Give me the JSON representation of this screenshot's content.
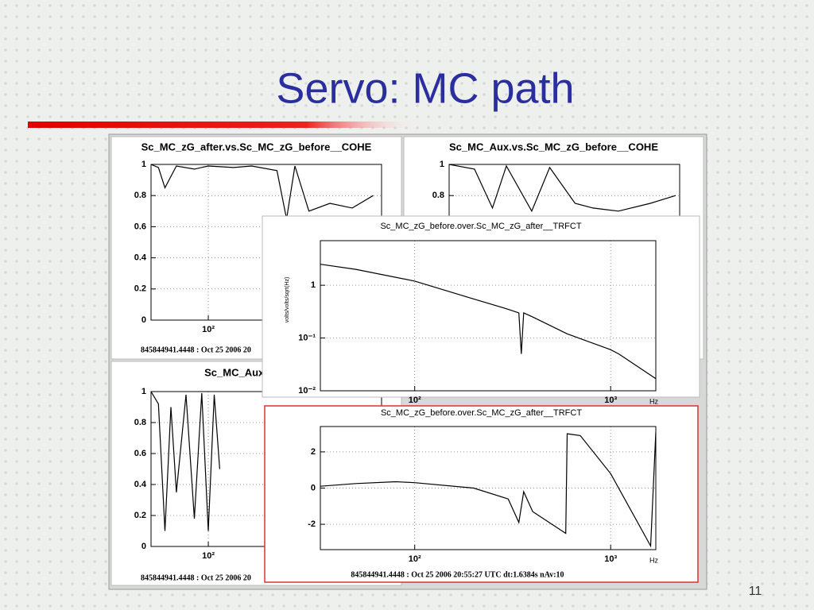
{
  "slide": {
    "title": "Servo: MC path",
    "page_number": "11"
  },
  "chart_data": [
    {
      "type": "line",
      "title": "Sc_MC_zG_after.vs.Sc_MC_zG_before__COHE",
      "note": "845844941.4448 : Oct 25 2006 20",
      "xlog": true,
      "xlim": [
        40,
        1600
      ],
      "xticks": [
        {
          "value": 100,
          "label": "10²"
        }
      ],
      "ylim": [
        0,
        1
      ],
      "yticks": [
        0,
        0.2,
        0.4,
        0.6,
        0.8,
        1
      ],
      "grid": true,
      "color": "#000000",
      "x": [
        40,
        45,
        50,
        60,
        80,
        100,
        150,
        200,
        300,
        350,
        400,
        500,
        700,
        1000,
        1400
      ],
      "values": [
        1,
        0.98,
        0.85,
        0.99,
        0.97,
        0.99,
        0.98,
        0.99,
        0.96,
        0.65,
        0.99,
        0.7,
        0.75,
        0.72,
        0.8
      ]
    },
    {
      "type": "line",
      "title": "Sc_MC_Aux.vs.Sc_MC_zG_before__COHE",
      "xlog": true,
      "xlim": [
        40,
        1600
      ],
      "xticks": [],
      "ylim": [
        0,
        1
      ],
      "yticks": [
        0.8,
        1
      ],
      "grid": true,
      "color": "#000000",
      "x": [
        40,
        60,
        80,
        100,
        150,
        200,
        300,
        400,
        600,
        1000,
        1500
      ],
      "values": [
        1,
        0.97,
        0.72,
        0.99,
        0.7,
        0.98,
        0.75,
        0.72,
        0.7,
        0.75,
        0.8
      ]
    },
    {
      "type": "line",
      "title": "Sc_MC_Aux.vs.Sc_M",
      "note": "845844941.4448 : Oct 25 2006 20",
      "xlog": true,
      "xlim": [
        40,
        1600
      ],
      "xticks": [
        {
          "value": 100,
          "label": "10²"
        }
      ],
      "ylim": [
        0,
        1
      ],
      "yticks": [
        0,
        0.2,
        0.4,
        0.6,
        0.8,
        1
      ],
      "grid": true,
      "color": "#000000",
      "x": [
        40,
        45,
        50,
        55,
        60,
        70,
        80,
        90,
        100,
        110,
        120
      ],
      "values": [
        1,
        0.92,
        0.1,
        0.9,
        0.35,
        0.98,
        0.18,
        0.99,
        0.1,
        0.98,
        0.5
      ]
    },
    {
      "type": "line",
      "title": "Sc_MC_zG_before.over.Sc_MC_zG_after__TRFCT",
      "y_label": "volts/volts/sqrt(Hz)",
      "x_label": "Hz",
      "xlog": true,
      "xlim": [
        33,
        1700
      ],
      "xticks": [
        {
          "value": 100,
          "label": "10²"
        },
        {
          "value": 1000,
          "label": "10³"
        }
      ],
      "ylog": true,
      "ylim": [
        0.01,
        7
      ],
      "yticks": [
        1,
        {
          "value": 0.1,
          "label": "10⁻¹"
        },
        {
          "value": 0.01,
          "label": "10⁻²"
        }
      ],
      "grid": true,
      "color": "#000000",
      "x": [
        33,
        50,
        100,
        200,
        300,
        340,
        350,
        360,
        400,
        600,
        1000,
        1100,
        1700
      ],
      "values": [
        2.5,
        2.0,
        1.2,
        0.55,
        0.35,
        0.3,
        0.05,
        0.3,
        0.25,
        0.12,
        0.06,
        0.05,
        0.017
      ]
    },
    {
      "type": "line",
      "title": "Sc_MC_zG_before.over.Sc_MC_zG_after__TRFCT",
      "x_label": "Hz",
      "note": "845844941.4448 : Oct 25 2006 20:55:27 UTC dt:1.6384s nAv:10",
      "xlog": true,
      "xlim": [
        33,
        1700
      ],
      "xticks": [
        {
          "value": 100,
          "label": "10²"
        },
        {
          "value": 1000,
          "label": "10³"
        }
      ],
      "ylim": [
        -3.4,
        3.4
      ],
      "yticks": [
        -2,
        0,
        2
      ],
      "grid": true,
      "color": "#000000",
      "x": [
        33,
        50,
        80,
        100,
        200,
        300,
        340,
        360,
        400,
        590,
        600,
        700,
        1000,
        1600,
        1700
      ],
      "values": [
        0.1,
        0.25,
        0.35,
        0.3,
        0,
        -0.6,
        -1.9,
        -0.2,
        -1.3,
        -2.5,
        3.0,
        2.9,
        0.8,
        -3.2,
        3.1
      ]
    }
  ]
}
